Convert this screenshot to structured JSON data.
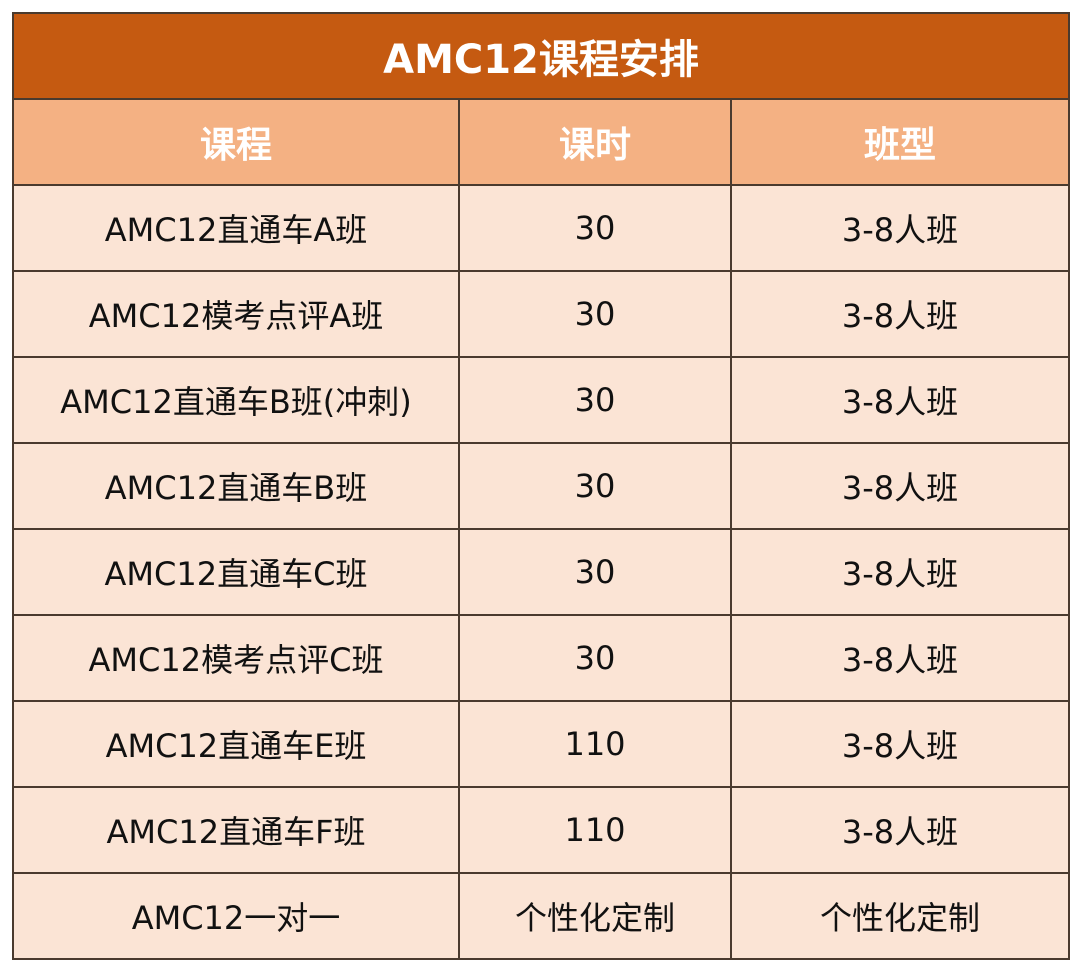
{
  "title": "AMC12课程安排",
  "headers": [
    "课程",
    "课时",
    "班型"
  ],
  "rows": [
    [
      "AMC12直通车A班",
      "30",
      "3-8人班"
    ],
    [
      "AMC12模考点评A班",
      "30",
      "3-8人班"
    ],
    [
      "AMC12直通车B班(冲刺)",
      "30",
      "3-8人班"
    ],
    [
      "AMC12直通车B班",
      "30",
      "3-8人班"
    ],
    [
      "AMC12直通车C班",
      "30",
      "3-8人班"
    ],
    [
      "AMC12模考点评C班",
      "30",
      "3-8人班"
    ],
    [
      "AMC12直通车E班",
      "110",
      "3-8人班"
    ],
    [
      "AMC12直通车F班",
      "110",
      "3-8人班"
    ],
    [
      "AMC12一对一",
      "个性化定制",
      "个性化定制"
    ]
  ],
  "colors": {
    "title_bg": "#c55a11",
    "header_bg": "#f4b183",
    "body_bg": "#fbe4d5",
    "border": "#4a3a2e"
  }
}
